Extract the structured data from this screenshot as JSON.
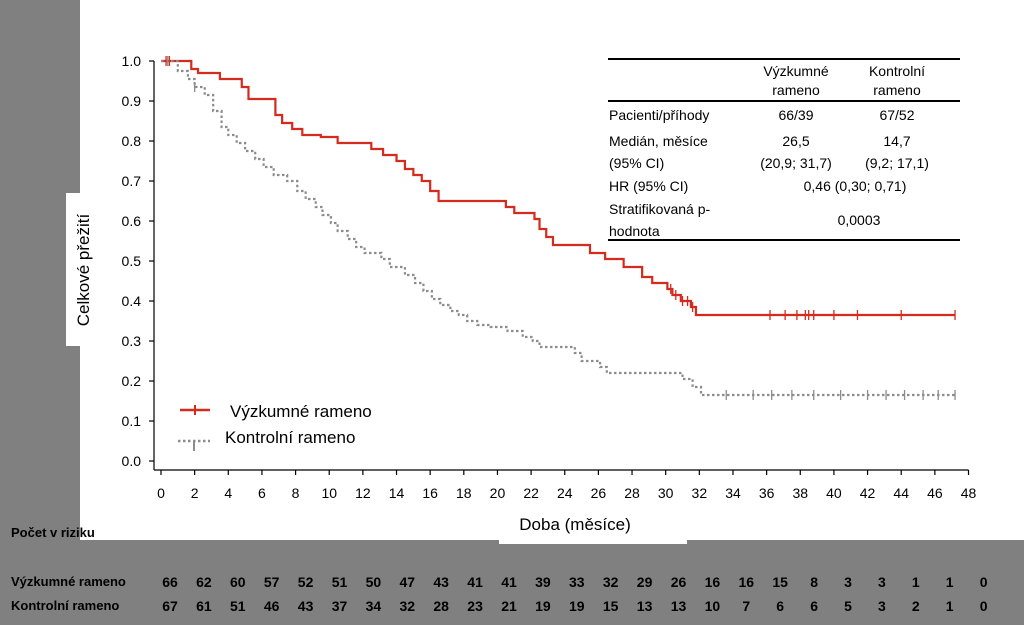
{
  "chart_data": {
    "type": "line",
    "title": "",
    "xlabel": "Doba (měsíce)",
    "ylabel": "Celkové přežití",
    "xlim": [
      0,
      48
    ],
    "ylim": [
      0,
      1
    ],
    "x_ticks": [
      "0",
      "2",
      "4",
      "6",
      "8",
      "10",
      "12",
      "14",
      "16",
      "18",
      "20",
      "22",
      "24",
      "26",
      "28",
      "30",
      "32",
      "34",
      "36",
      "38",
      "40",
      "42",
      "44",
      "46",
      "48"
    ],
    "y_ticks": [
      "0.0",
      "0.1",
      "0.2",
      "0.3",
      "0.4",
      "0.5",
      "0.6",
      "0.7",
      "0.8",
      "0.9",
      "1.0"
    ],
    "series": [
      {
        "name": "Výzkumné rameno",
        "style": "solid",
        "color": "#d42b1e",
        "x": [
          0,
          1.8,
          2.2,
          3.5,
          4.8,
          5.2,
          6.8,
          7.2,
          7.8,
          8.4,
          9.5,
          10.5,
          12.5,
          13.2,
          14.0,
          14.5,
          15.0,
          15.5,
          16.0,
          16.5,
          20.5,
          21.0,
          22.2,
          22.5,
          22.9,
          23.3,
          25.5,
          26.4,
          27.5,
          28.6,
          29.2,
          30.1,
          30.4,
          30.9,
          31.5,
          31.8,
          47.2
        ],
        "y": [
          1.0,
          0.98,
          0.97,
          0.955,
          0.935,
          0.905,
          0.865,
          0.845,
          0.83,
          0.815,
          0.81,
          0.795,
          0.78,
          0.765,
          0.75,
          0.73,
          0.715,
          0.7,
          0.675,
          0.65,
          0.635,
          0.62,
          0.605,
          0.58,
          0.56,
          0.54,
          0.52,
          0.505,
          0.485,
          0.46,
          0.445,
          0.43,
          0.415,
          0.4,
          0.385,
          0.365,
          0.365
        ]
      },
      {
        "name": "Kontrolní rameno",
        "style": "dotted",
        "color": "#8c8c8c",
        "x": [
          0,
          1.0,
          1.6,
          2.0,
          2.6,
          3.1,
          3.6,
          4.0,
          4.5,
          5.0,
          5.6,
          6.1,
          6.7,
          7.5,
          8.1,
          8.6,
          9.2,
          9.6,
          10.1,
          10.5,
          11.1,
          11.6,
          12.1,
          13.1,
          13.6,
          14.5,
          15.1,
          15.6,
          16.1,
          16.6,
          17.2,
          17.7,
          18.2,
          18.8,
          19.6,
          20.6,
          21.5,
          22.1,
          22.5,
          24.6,
          25.0,
          26.1,
          26.5,
          31.0,
          31.6,
          32.1,
          47.2
        ],
        "y": [
          1.0,
          0.975,
          0.955,
          0.935,
          0.915,
          0.875,
          0.835,
          0.815,
          0.795,
          0.775,
          0.755,
          0.735,
          0.715,
          0.7,
          0.675,
          0.655,
          0.635,
          0.615,
          0.595,
          0.575,
          0.555,
          0.535,
          0.52,
          0.505,
          0.485,
          0.465,
          0.445,
          0.425,
          0.405,
          0.39,
          0.375,
          0.365,
          0.35,
          0.34,
          0.335,
          0.325,
          0.31,
          0.3,
          0.285,
          0.27,
          0.25,
          0.235,
          0.22,
          0.205,
          0.185,
          0.165,
          0.165
        ]
      }
    ],
    "censor_marks": {
      "Výzkumné rameno": [
        0.3,
        0.5,
        30.3,
        30.6,
        31.0,
        31.3,
        31.6,
        36.2,
        37.1,
        37.8,
        38.3,
        38.5,
        38.8,
        40.0,
        41.4,
        44.0,
        47.2
      ],
      "Kontrolní rameno": [
        0.4,
        2.0,
        33.6,
        35.2,
        36.3,
        37.5,
        38.8,
        40.4,
        42.0,
        43.1,
        44.2,
        45.3,
        46.2,
        47.2
      ]
    },
    "legend": [
      "Výzkumné rameno",
      "Kontrolní rameno"
    ],
    "legend_position": "bottom-left"
  },
  "stats_table": {
    "col1": "Výzkumné rameno",
    "col2": "Kontrolní rameno",
    "rows": {
      "patients_label": "Pacienti/příhody",
      "patients_v": "66/39",
      "patients_k": "67/52",
      "median_label_1": "Medián, měsíce",
      "median_label_2": "(95% CI)",
      "median_v": "26,5",
      "median_k": "14,7",
      "median_ci_v": "(20,9; 31,7)",
      "median_ci_k": "(9,2; 17,1)",
      "hr_label": "HR (95% CI)",
      "hr_value": "0,46 (0,30; 0,71)",
      "p_label_1": "Stratifikovaná p-",
      "p_label_2": "hodnota",
      "p_value": "0,0003"
    }
  },
  "risk_table": {
    "title": "Počet v riziku",
    "rows": [
      {
        "label": "Výzkumné rameno",
        "values": [
          "66",
          "62",
          "60",
          "57",
          "52",
          "51",
          "50",
          "47",
          "43",
          "41",
          "41",
          "39",
          "33",
          "32",
          "29",
          "26",
          "16",
          "16",
          "15",
          "8",
          "3",
          "3",
          "1",
          "1",
          "0"
        ]
      },
      {
        "label": "Kontrolní rameno",
        "values": [
          "67",
          "61",
          "51",
          "46",
          "43",
          "37",
          "34",
          "32",
          "28",
          "23",
          "21",
          "19",
          "19",
          "15",
          "13",
          "13",
          "10",
          "7",
          "6",
          "6",
          "5",
          "3",
          "2",
          "1",
          "0"
        ]
      }
    ]
  }
}
